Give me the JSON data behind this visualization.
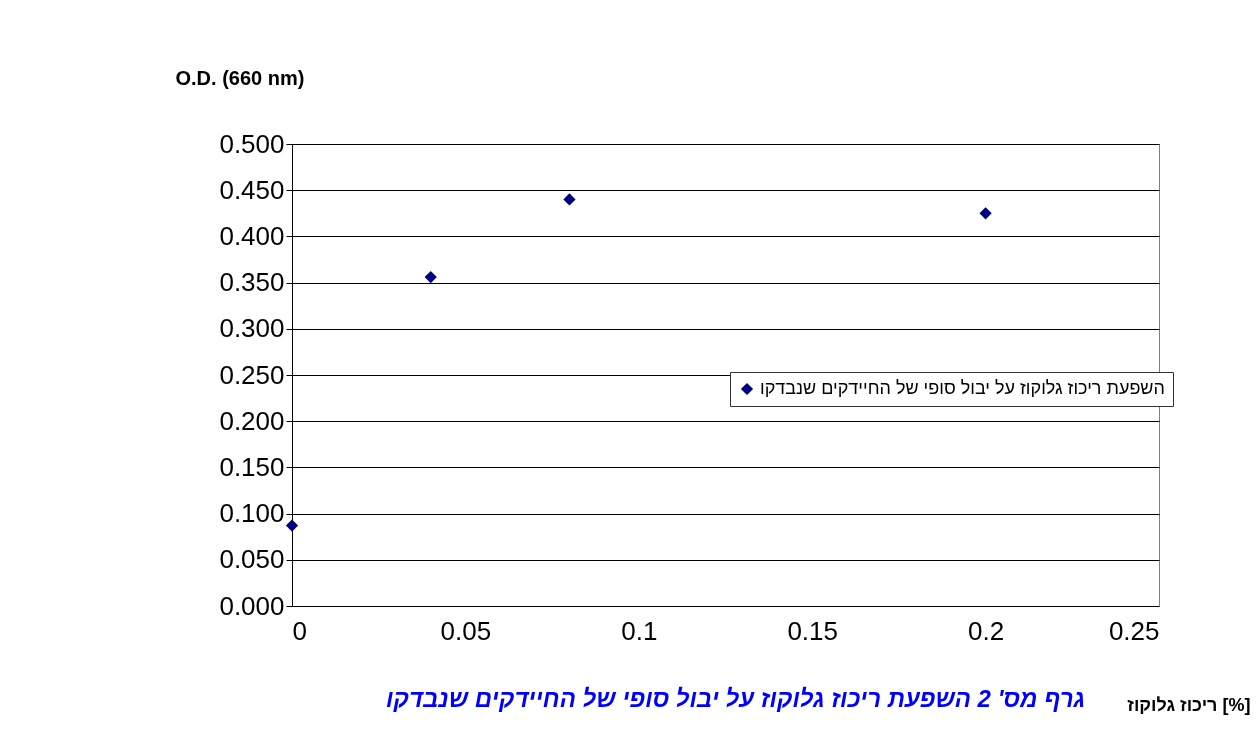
{
  "chart_data": {
    "type": "scatter",
    "ylabel": "O.D. (660 nm)",
    "xlabel": "ריכוז גלוקוז [%]",
    "annotations": [
      "גרף מס' 2 השפעת ריכוז גלוקוז על יבול סופי של החיידקים שנבדקו"
    ],
    "x": [
      0,
      0.04,
      0.08,
      0.2
    ],
    "series": [
      {
        "name": "השפעת ריכוז גלוקוז על יבול סופי של החיידקים שנבדקו",
        "color": "#000080",
        "values": [
          0.087,
          0.356,
          0.44,
          0.425
        ]
      }
    ],
    "xlim": [
      0,
      0.25
    ],
    "xticks": [
      0,
      0.05,
      0.1,
      0.15,
      0.2,
      0.25
    ],
    "ylim": [
      0,
      0.5
    ],
    "yticks": [
      {
        "value": 0,
        "label": "0.000"
      },
      {
        "value": 0.05,
        "label": "0.050"
      },
      {
        "value": 0.1,
        "label": "0.100"
      },
      {
        "value": 0.15,
        "label": "0.150"
      },
      {
        "value": 0.2,
        "label": "0.200"
      },
      {
        "value": 0.25,
        "label": "0.250"
      },
      {
        "value": 0.3,
        "label": "0.300"
      },
      {
        "value": 0.35,
        "label": "0.350"
      },
      {
        "value": 0.4,
        "label": "0.400"
      },
      {
        "value": 0.45,
        "label": "0.450"
      },
      {
        "value": 0.5,
        "label": "0.500"
      }
    ],
    "grid": "y",
    "legend": "right",
    "marker": "diamond"
  }
}
